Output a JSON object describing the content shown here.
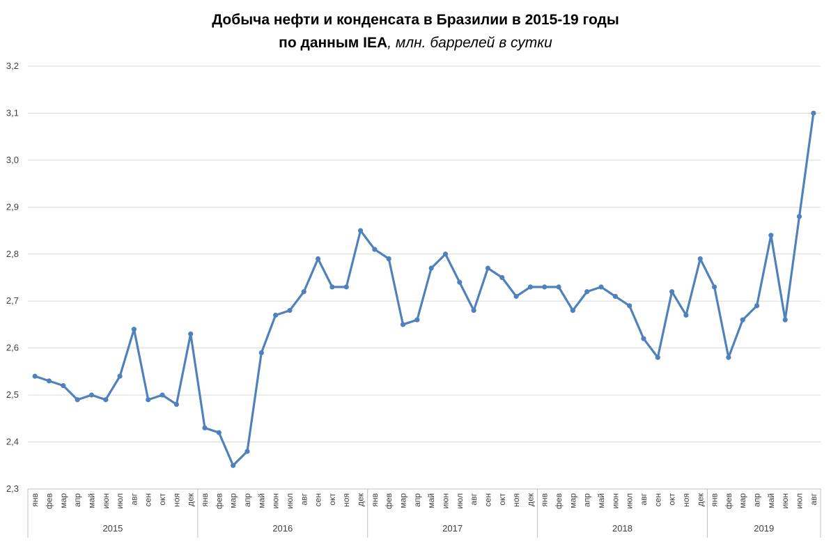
{
  "chart_data": {
    "type": "line",
    "title_main": "Добыча нефти и конденсата в Бразилии в 2015-19 годы",
    "title_sub_bold": "по данным IEA",
    "title_sub_italic": ", млн. баррелей в сутки",
    "ylim": [
      2.3,
      3.2
    ],
    "yticks": [
      "2,3",
      "2,4",
      "2,5",
      "2,6",
      "2,7",
      "2,8",
      "2,9",
      "3,0",
      "3,1",
      "3,2"
    ],
    "grid": true,
    "line_color": "#4F81BD",
    "years": [
      {
        "label": "2015",
        "months": 12
      },
      {
        "label": "2016",
        "months": 12
      },
      {
        "label": "2017",
        "months": 12
      },
      {
        "label": "2018",
        "months": 12
      },
      {
        "label": "2019",
        "months": 8
      }
    ],
    "months": [
      "янв",
      "фев",
      "мар",
      "апр",
      "май",
      "июн",
      "июл",
      "авг",
      "сен",
      "окт",
      "ноя",
      "дек",
      "янв",
      "фев",
      "мар",
      "апр",
      "май",
      "июн",
      "июл",
      "авг",
      "сен",
      "окт",
      "ноя",
      "дек",
      "янв",
      "фев",
      "мар",
      "апр",
      "май",
      "июн",
      "июл",
      "авг",
      "сен",
      "окт",
      "ноя",
      "дек",
      "янв",
      "фев",
      "мар",
      "апр",
      "май",
      "июн",
      "июл",
      "авг",
      "сен",
      "окт",
      "ноя",
      "дек",
      "янв",
      "фев",
      "мар",
      "апр",
      "май",
      "июн",
      "июл",
      "авг"
    ],
    "series": [
      {
        "values": [
          2.54,
          2.53,
          2.52,
          2.49,
          2.5,
          2.49,
          2.54,
          2.64,
          2.49,
          2.5,
          2.48,
          2.63,
          2.43,
          2.42,
          2.35,
          2.38,
          2.59,
          2.67,
          2.68,
          2.72,
          2.79,
          2.73,
          2.73,
          2.85,
          2.81,
          2.79,
          2.65,
          2.66,
          2.77,
          2.8,
          2.74,
          2.68,
          2.77,
          2.75,
          2.71,
          2.73,
          2.73,
          2.73,
          2.68,
          2.72,
          2.73,
          2.71,
          2.69,
          2.62,
          2.58,
          2.72,
          2.67,
          2.79,
          2.73,
          2.58,
          2.66,
          2.69,
          2.84,
          2.66,
          2.88,
          3.1
        ]
      }
    ]
  }
}
